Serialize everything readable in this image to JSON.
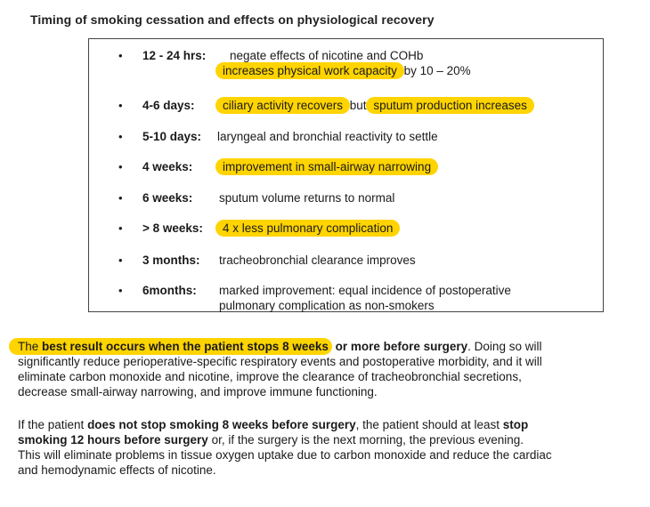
{
  "title": "Timing of smoking cessation and effects on physiological recovery",
  "bullet_char": "•",
  "items": [
    {
      "label": "12 - 24 hrs:",
      "line1": "negate effects of nicotine and COHb",
      "hl1": "increases physical work capacity",
      "rest1": " by 10 – 20%"
    },
    {
      "label": "4-6 days:",
      "hl_a": "ciliary activity recovers",
      "mid": " but ",
      "hl_b": "sputum production increases"
    },
    {
      "label": "5-10 days:",
      "text": "laryngeal and bronchial reactivity to settle"
    },
    {
      "label": "4 weeks:",
      "hl": "improvement in small-airway narrowing"
    },
    {
      "label": "6 weeks:",
      "text": "sputum volume returns to normal"
    },
    {
      "label": "> 8 weeks:",
      "hl": "4 x less pulmonary complication"
    },
    {
      "label": "3 months:",
      "text": "tracheobronchial clearance improves"
    },
    {
      "label": "6months:",
      "line1": "marked improvement: equal incidence of postoperative",
      "line2": "pulmonary complication as non-smokers"
    }
  ],
  "para1": {
    "hl_prefix": "The ",
    "hl_bold": "best result occurs when the patient stops 8 weeks",
    "bold_rest": " or more before surgery",
    "line1_tail": ". Doing so will",
    "line2": "significantly reduce perioperative-specific respiratory events and postoperative morbidity, and it will",
    "line3": "eliminate carbon monoxide and nicotine, improve the clearance of tracheobronchial secretions,",
    "line4": "decrease small-airway narrowing, and improve immune functioning."
  },
  "para2": {
    "pre": "If the patient ",
    "bold1": "does not stop smoking 8 weeks before surgery",
    "mid": ", the patient should at least ",
    "bold2": "stop",
    "bold3": "smoking 12 hours before surgery",
    "line2_tail": " or, if the surgery is the next morning, the previous evening.",
    "line3": "This will eliminate problems in tissue oxygen uptake due to carbon monoxide and reduce the cardiac",
    "line4": "and hemodynamic effects of nicotine."
  },
  "colors": {
    "highlight": "#ffd400",
    "text": "#1a1a1a",
    "border": "#444444"
  }
}
